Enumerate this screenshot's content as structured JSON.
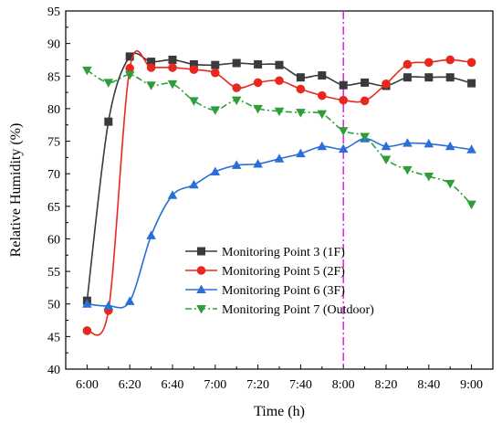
{
  "chart_data": {
    "type": "line",
    "title": "",
    "xlabel": "Time (h)",
    "ylabel": "Relative Humidity (%)",
    "ylim": [
      40,
      95
    ],
    "y_ticks": [
      40,
      45,
      50,
      55,
      60,
      65,
      70,
      75,
      80,
      85,
      90,
      95
    ],
    "x_ticks": [
      "6:00",
      "6:20",
      "6:40",
      "7:00",
      "7:20",
      "7:40",
      "8:00",
      "8:20",
      "8:40",
      "9:00"
    ],
    "x": [
      "6:00",
      "6:10",
      "6:20",
      "6:30",
      "6:40",
      "6:50",
      "7:00",
      "7:10",
      "7:20",
      "7:30",
      "7:40",
      "7:50",
      "8:00",
      "8:10",
      "8:20",
      "8:30",
      "8:40",
      "8:50",
      "9:00"
    ],
    "vline": "8:00",
    "grid": false,
    "legend_position": "bottom-right",
    "series": [
      {
        "name": "Monitoring Point 3 (1F)",
        "color": "#3a3a3a",
        "marker": "square",
        "dash": "solid",
        "values": [
          50.5,
          78,
          88,
          87.2,
          87.5,
          86.8,
          86.7,
          87,
          86.8,
          86.7,
          84.8,
          85.1,
          83.6,
          84,
          83.5,
          84.8,
          84.8,
          84.8,
          83.9
        ]
      },
      {
        "name": "Monitoring Point 5 (2F)",
        "color": "#e8281e",
        "marker": "circle",
        "dash": "solid",
        "values": [
          45.9,
          49,
          86.2,
          86.3,
          86.3,
          86,
          85.5,
          83.2,
          84,
          84.3,
          83,
          82,
          81.3,
          81.2,
          83.8,
          86.8,
          87.1,
          87.5,
          87.1
        ]
      },
      {
        "name": "Monitoring Point 6 (3F)",
        "color": "#2a6fd6",
        "marker": "triangle-up",
        "dash": "solid",
        "values": [
          50,
          49.7,
          50.4,
          60.5,
          66.7,
          68.3,
          70.3,
          71.3,
          71.5,
          72.3,
          73.1,
          74.2,
          73.8,
          75.4,
          74.2,
          74.7,
          74.6,
          74.2,
          73.7
        ]
      },
      {
        "name": "Monitoring Point 7 (Outdoor)",
        "color": "#2e9e3a",
        "marker": "triangle-down",
        "dash": "dashdot",
        "values": [
          85.9,
          84,
          85.2,
          83.6,
          83.8,
          81.2,
          79.8,
          81.3,
          80,
          79.6,
          79.4,
          79.2,
          76.6,
          75.7,
          72.2,
          70.6,
          69.6,
          68.5,
          65.3
        ]
      }
    ]
  }
}
